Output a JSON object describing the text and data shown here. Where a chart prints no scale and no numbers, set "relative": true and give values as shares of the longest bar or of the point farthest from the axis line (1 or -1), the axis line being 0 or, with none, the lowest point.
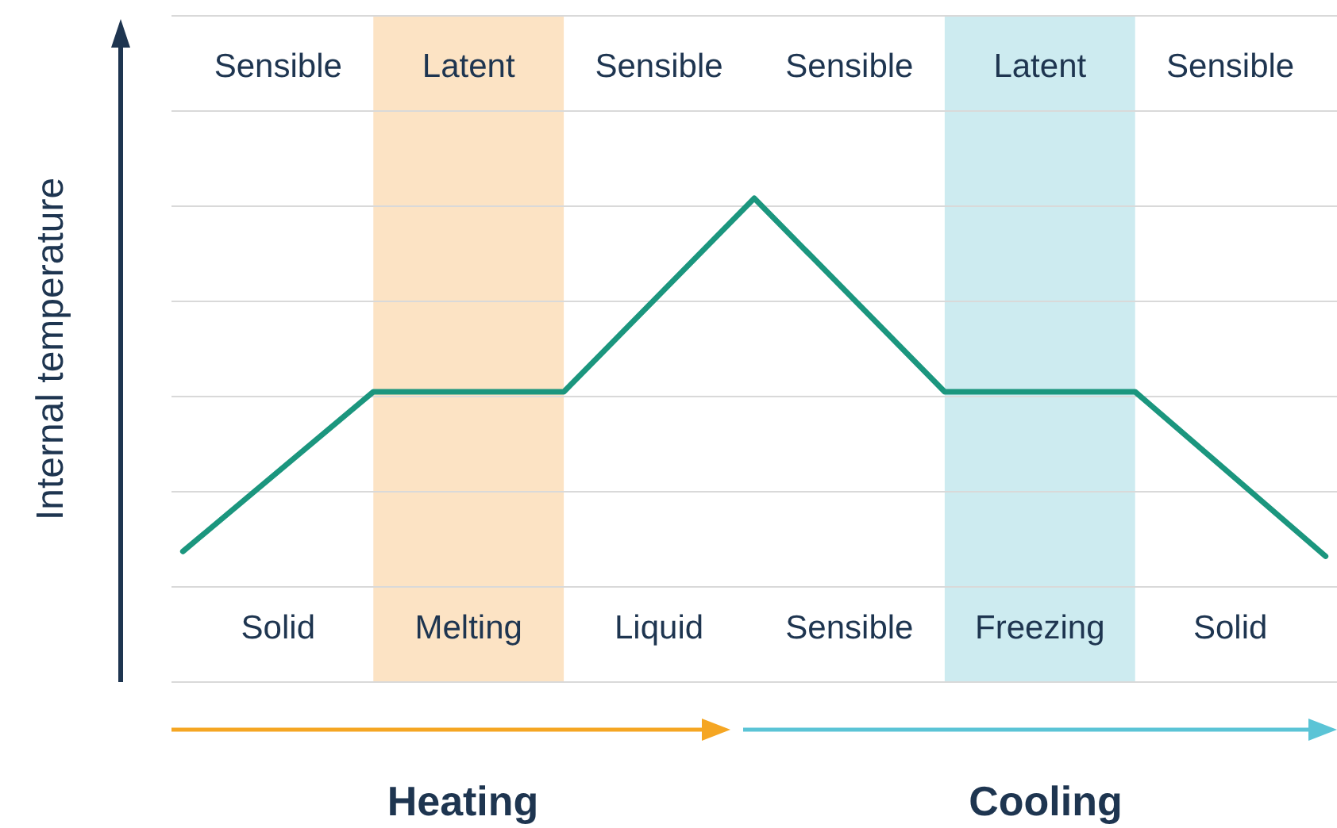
{
  "chart_data": {
    "type": "line",
    "relative": true,
    "ylabel": "Internal temperature",
    "tick_labels": false,
    "grid": true,
    "legend": false,
    "marker": "none",
    "line_style": "solid",
    "categories": [
      null,
      null,
      null,
      null,
      null,
      null,
      null
    ],
    "series": [
      {
        "color": "#1b967e",
        "values": [
          0.27,
          0.6,
          0.6,
          1,
          0.6,
          0.6,
          0.26
        ]
      }
    ],
    "annotations": [
      "Sensible",
      "Latent",
      "Sensible",
      "Sensible",
      "Latent",
      "Sensible",
      "Solid",
      "Melting",
      "Liquid",
      "Sensible",
      "Freezing",
      "Solid",
      "Heating",
      "Cooling"
    ]
  }
}
